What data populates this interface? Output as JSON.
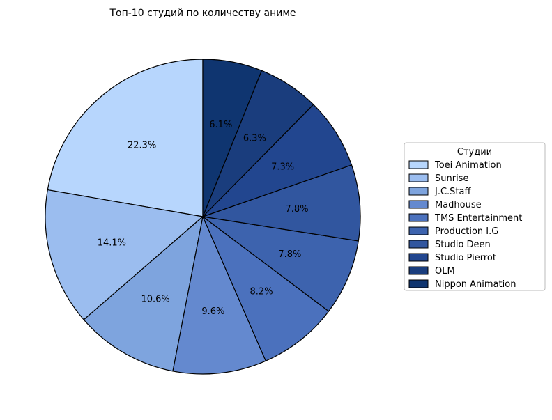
{
  "chart_data": {
    "type": "pie",
    "title": "Топ-10 студий по количеству аниме",
    "legend_title": "Студии",
    "legend_position": "right",
    "start_angle_deg": 90,
    "direction": "counterclockwise",
    "slices": [
      {
        "label": "Toei Animation",
        "value": 22.3,
        "pct_label": "22.3%",
        "color": "#b7d6fd"
      },
      {
        "label": "Sunrise",
        "value": 14.1,
        "pct_label": "14.1%",
        "color": "#9bbdef"
      },
      {
        "label": "J.C.Staff",
        "value": 10.6,
        "pct_label": "10.6%",
        "color": "#7ea4de"
      },
      {
        "label": "Madhouse",
        "value": 9.6,
        "pct_label": "9.6%",
        "color": "#6489cf"
      },
      {
        "label": "TMS Entertainment",
        "value": 8.2,
        "pct_label": "8.2%",
        "color": "#4b71bd"
      },
      {
        "label": "Production I.G",
        "value": 7.8,
        "pct_label": "7.8%",
        "color": "#3d63ae"
      },
      {
        "label": "Studio Deen",
        "value": 7.8,
        "pct_label": "7.8%",
        "color": "#31569f"
      },
      {
        "label": "Studio Pierrot",
        "value": 7.3,
        "pct_label": "7.3%",
        "color": "#22468f"
      },
      {
        "label": "OLM",
        "value": 6.3,
        "pct_label": "6.3%",
        "color": "#1a3d7d"
      },
      {
        "label": "Nippon Animation",
        "value": 6.1,
        "pct_label": "6.1%",
        "color": "#0f3570"
      }
    ]
  }
}
